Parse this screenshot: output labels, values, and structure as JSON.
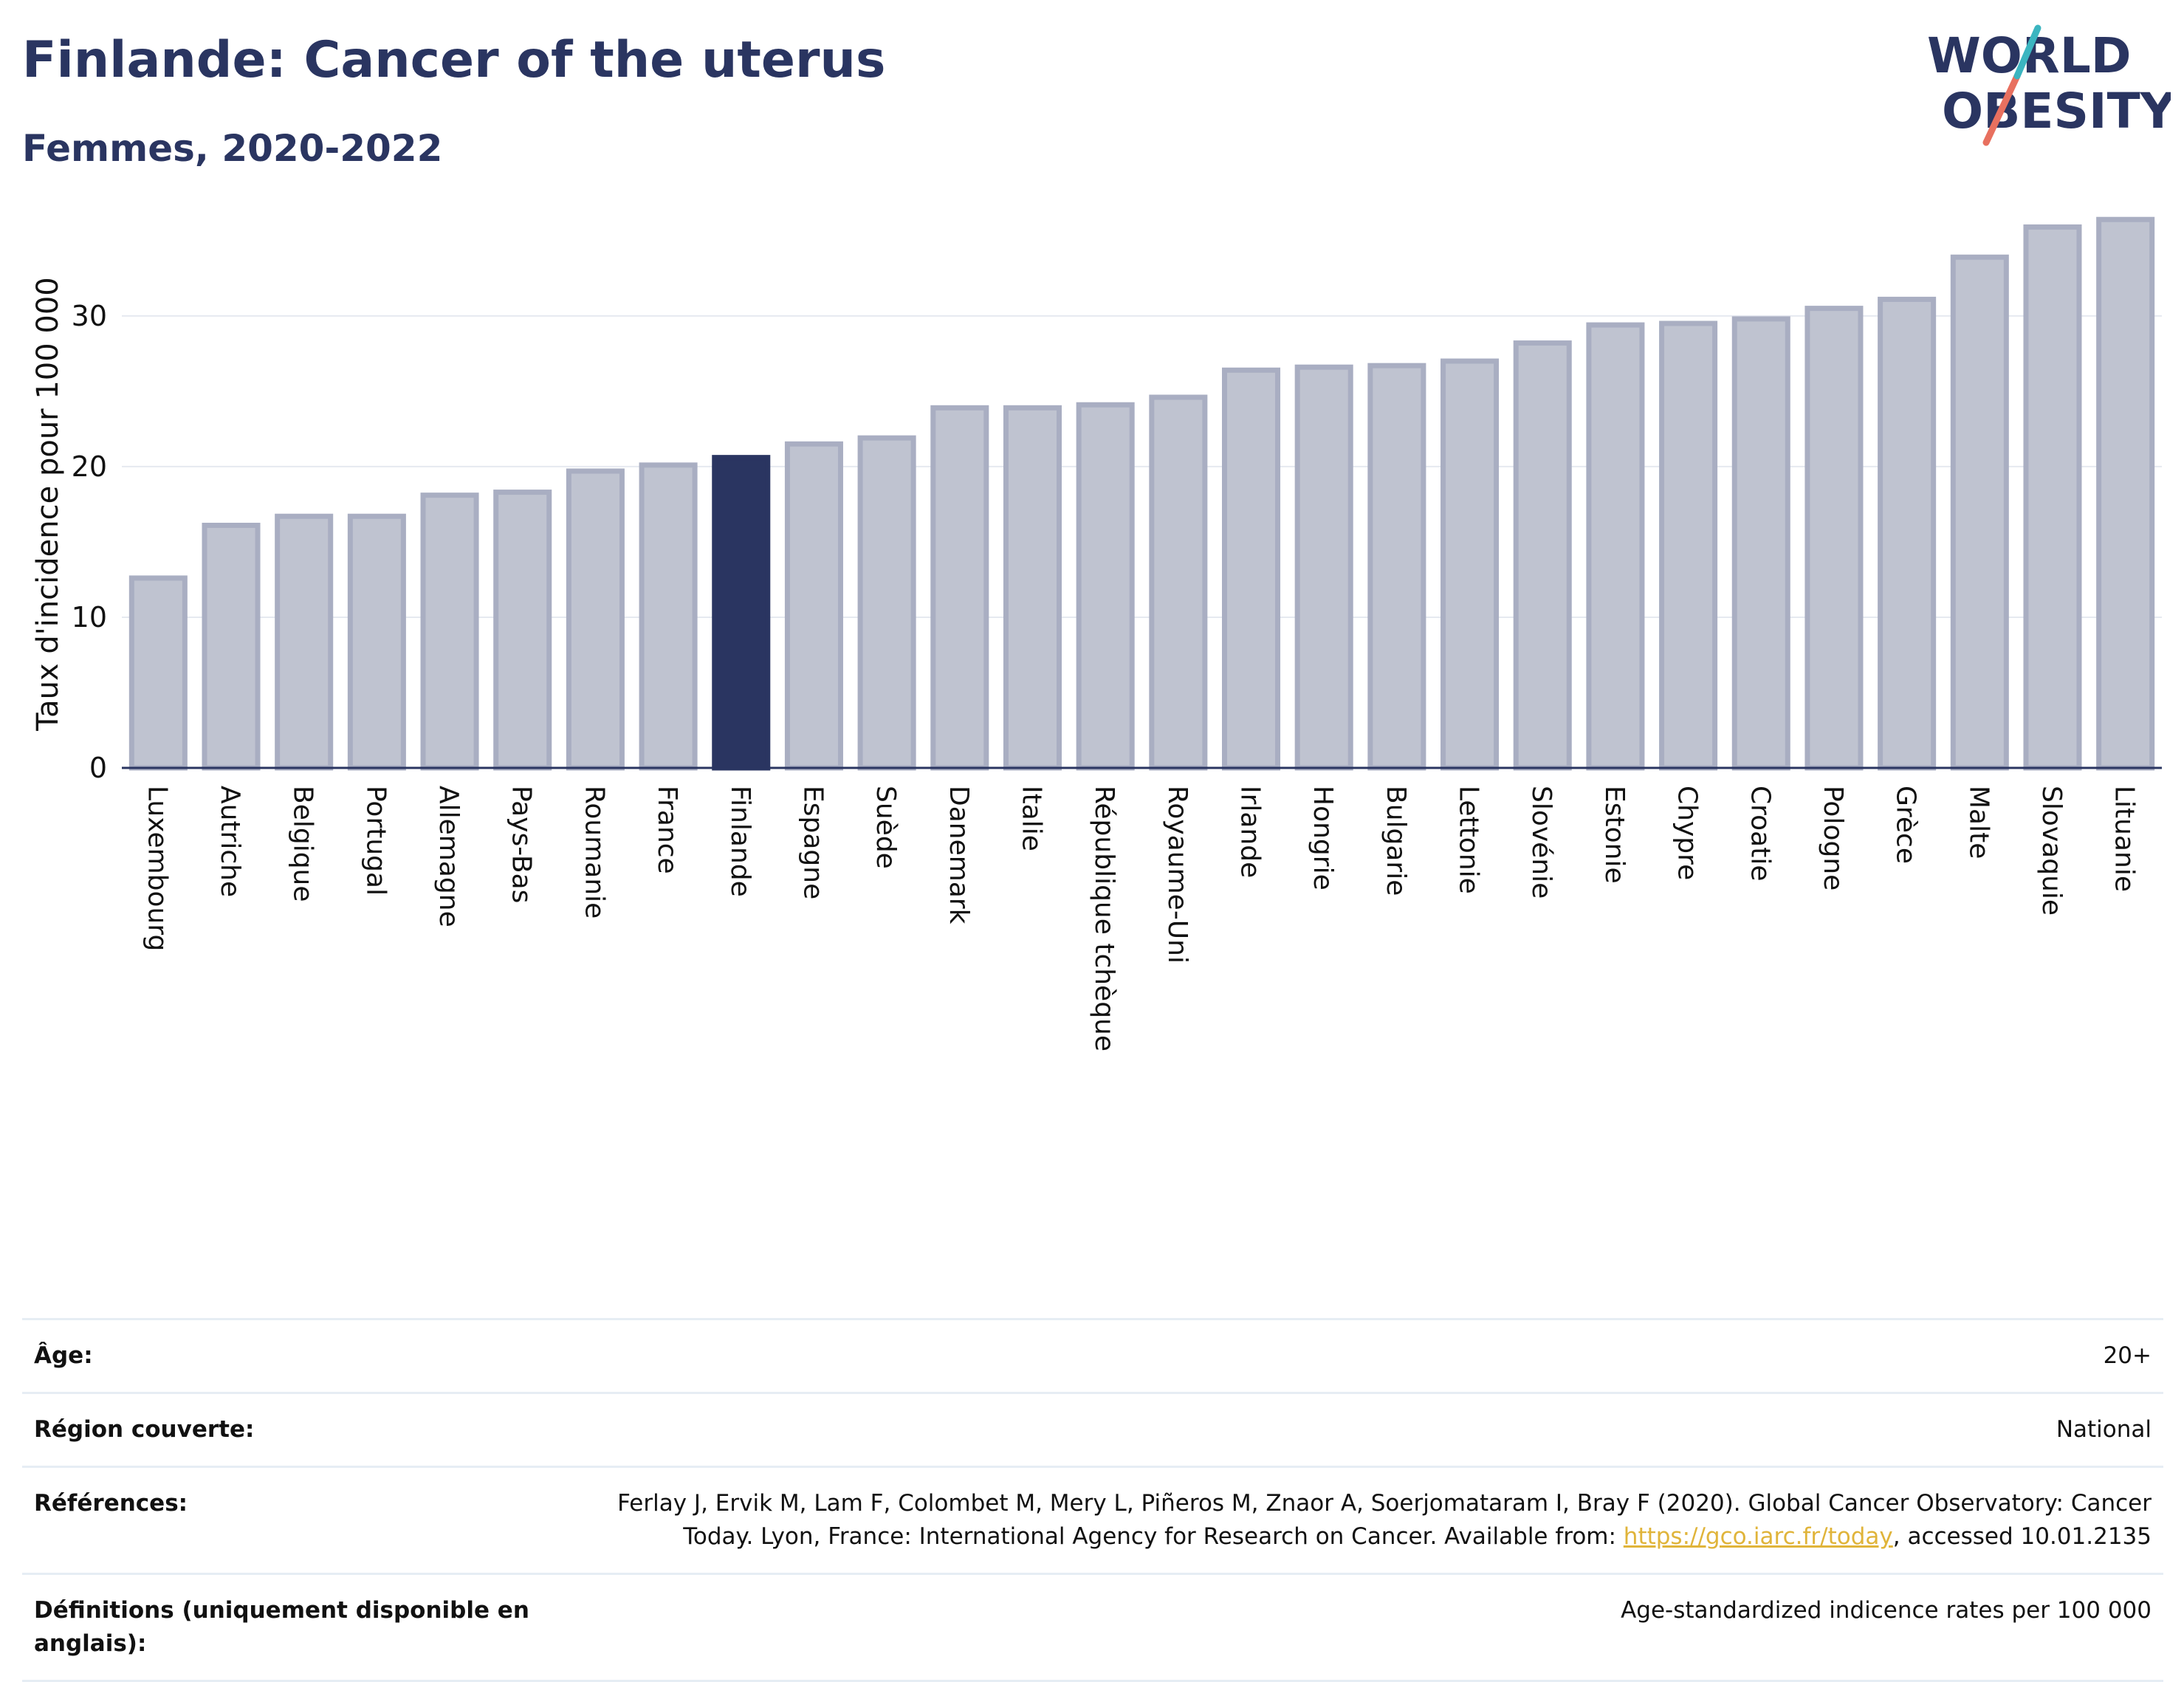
{
  "header": {
    "title": "Finlande: Cancer of the uterus",
    "subtitle": "Femmes, 2020-2022"
  },
  "logo": {
    "line1": "WORLD",
    "line2": "OBESITY"
  },
  "colors": {
    "highlight": "#2a3561",
    "bar_fill": "#bfc3d0",
    "bar_stroke": "#a9aec2",
    "axis": "#2a3561",
    "grid": "#e6e9f0",
    "link": "#e0b43a",
    "logo_red": "#e8705f",
    "logo_teal": "#3bb5c0"
  },
  "chart_data": {
    "type": "bar",
    "title": "Finlande: Cancer of the uterus",
    "subtitle": "Femmes, 2020-2022",
    "xlabel": "",
    "ylabel": "Taux d'incidence pour 100 000",
    "ylim": [
      0,
      37
    ],
    "yticks": [
      0,
      10,
      20,
      30
    ],
    "grid": true,
    "highlight": "Finlande",
    "categories": [
      "Luxembourg",
      "Autriche",
      "Belgique",
      "Portugal",
      "Allemagne",
      "Pays-Bas",
      "Roumanie",
      "France",
      "Finlande",
      "Espagne",
      "Suède",
      "Danemark",
      "Italie",
      "République tchèque",
      "Royaume-Uni",
      "Irlande",
      "Hongrie",
      "Bulgarie",
      "Lettonie",
      "Slovénie",
      "Estonie",
      "Chypre",
      "Croatie",
      "Pologne",
      "Grèce",
      "Malte",
      "Slovaquie",
      "Lituanie"
    ],
    "values": [
      12.6,
      16.1,
      16.7,
      16.7,
      18.1,
      18.3,
      19.7,
      20.1,
      20.6,
      21.5,
      21.9,
      23.9,
      23.9,
      24.1,
      24.6,
      26.4,
      26.6,
      26.7,
      27.0,
      28.2,
      29.4,
      29.5,
      29.8,
      30.5,
      31.1,
      33.9,
      35.9,
      36.4
    ]
  },
  "info": {
    "age_label": "Âge:",
    "age_value": "20+",
    "region_label": "Région couverte:",
    "region_value": "National",
    "refs_label": "Références:",
    "refs_text1": "Ferlay J, Ervik M, Lam F, Colombet M, Mery L, Piñeros M, Znaor A, Soerjomataram I, Bray F (2020). Global Cancer Observatory: Cancer Today. Lyon, France: International Agency for Research on Cancer. Available from: ",
    "refs_link": "https://gco.iarc.fr/today",
    "refs_text2": ", accessed 10.01.2135",
    "defs_label": "Définitions (uniquement disponible en anglais):",
    "defs_value": "Age-standardized indicence rates per 100 000"
  }
}
